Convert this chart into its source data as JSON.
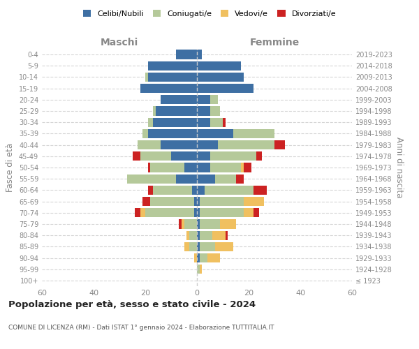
{
  "age_groups": [
    "100+",
    "95-99",
    "90-94",
    "85-89",
    "80-84",
    "75-79",
    "70-74",
    "65-69",
    "60-64",
    "55-59",
    "50-54",
    "45-49",
    "40-44",
    "35-39",
    "30-34",
    "25-29",
    "20-24",
    "15-19",
    "10-14",
    "5-9",
    "0-4"
  ],
  "birth_years": [
    "≤ 1923",
    "1924-1928",
    "1929-1933",
    "1934-1938",
    "1939-1943",
    "1944-1948",
    "1949-1953",
    "1954-1958",
    "1959-1963",
    "1964-1968",
    "1969-1973",
    "1974-1978",
    "1979-1983",
    "1984-1988",
    "1989-1993",
    "1994-1998",
    "1999-2003",
    "2004-2008",
    "2009-2013",
    "2014-2018",
    "2019-2023"
  ],
  "male": {
    "celibi": [
      0,
      0,
      0,
      0,
      0,
      0,
      1,
      1,
      2,
      8,
      5,
      10,
      14,
      19,
      17,
      16,
      14,
      22,
      19,
      19,
      8
    ],
    "coniugati": [
      0,
      0,
      0,
      3,
      3,
      5,
      19,
      17,
      15,
      19,
      13,
      12,
      9,
      2,
      2,
      1,
      0,
      0,
      1,
      0,
      0
    ],
    "vedovi": [
      0,
      0,
      1,
      2,
      1,
      1,
      2,
      0,
      0,
      0,
      0,
      0,
      0,
      0,
      0,
      0,
      0,
      0,
      0,
      0,
      0
    ],
    "divorziati": [
      0,
      0,
      0,
      0,
      0,
      1,
      2,
      3,
      2,
      0,
      1,
      3,
      0,
      0,
      0,
      0,
      0,
      0,
      0,
      0,
      0
    ]
  },
  "female": {
    "nubili": [
      0,
      0,
      1,
      1,
      1,
      1,
      1,
      1,
      3,
      7,
      5,
      5,
      8,
      14,
      5,
      5,
      5,
      22,
      18,
      17,
      2
    ],
    "coniugate": [
      0,
      1,
      3,
      6,
      5,
      8,
      17,
      17,
      19,
      8,
      12,
      18,
      22,
      16,
      5,
      4,
      3,
      0,
      0,
      0,
      0
    ],
    "vedove": [
      0,
      1,
      5,
      7,
      5,
      6,
      4,
      8,
      0,
      0,
      1,
      0,
      0,
      0,
      0,
      0,
      0,
      0,
      0,
      0,
      0
    ],
    "divorziate": [
      0,
      0,
      0,
      0,
      1,
      0,
      2,
      0,
      5,
      3,
      3,
      2,
      4,
      0,
      1,
      0,
      0,
      0,
      0,
      0,
      0
    ]
  },
  "colors": {
    "celibi": "#3e6fa3",
    "coniugati": "#b5c99a",
    "vedovi": "#f0c060",
    "divorziati": "#cc2222"
  },
  "xlim": 60,
  "title": "Popolazione per età, sesso e stato civile - 2024",
  "subtitle": "COMUNE DI LICENZA (RM) - Dati ISTAT 1° gennaio 2024 - Elaborazione TUTTITALIA.IT",
  "ylabel_left": "Fasce di età",
  "ylabel_right": "Anni di nascita",
  "xlabel_male": "Maschi",
  "xlabel_female": "Femmine",
  "legend_labels": [
    "Celibi/Nubili",
    "Coniugati/e",
    "Vedovi/e",
    "Divorziati/e"
  ],
  "bg_color": "#ffffff",
  "tick_color": "#888888",
  "grid_color": "#cccccc"
}
